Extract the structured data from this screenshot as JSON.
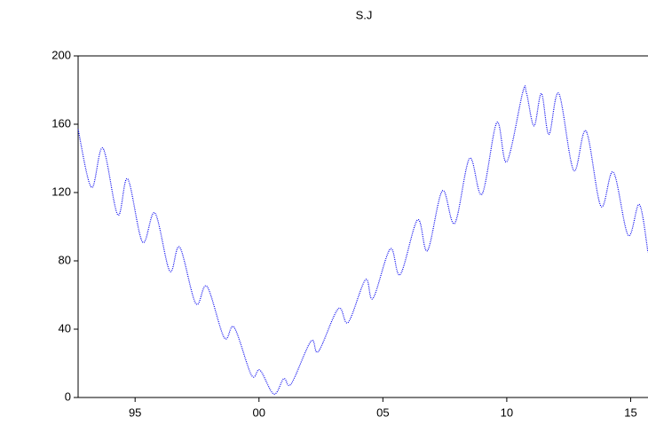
{
  "chart_data": {
    "type": "line",
    "title": "S.J",
    "x": [
      1992.7,
      1993.24,
      1993.7,
      1994.3,
      1994.7,
      1995.3,
      1995.8,
      1996.4,
      1996.8,
      1997.45,
      1997.9,
      1998.6,
      1999.0,
      1999.7,
      2000.04,
      2000.6,
      2001.0,
      2001.3,
      2002.1,
      2002.4,
      2003.2,
      2003.6,
      2004.3,
      2004.6,
      2005.3,
      2005.7,
      2006.4,
      2006.8,
      2007.4,
      2007.9,
      2008.5,
      2009.0,
      2009.6,
      2010.0,
      2010.65,
      2010.8,
      2011.1,
      2011.4,
      2011.7,
      2012.1,
      2012.7,
      2013.2,
      2013.8,
      2014.3,
      2014.9,
      2015.35,
      2015.7
    ],
    "series": [
      {
        "name": "S.J",
        "color": "#0000ee",
        "values": [
          157,
          123,
          146,
          107,
          128,
          91,
          108,
          74,
          88,
          55,
          65,
          35,
          41,
          13,
          16,
          2,
          11,
          8,
          33,
          27,
          52,
          44,
          69,
          58,
          87,
          72,
          104,
          86,
          121,
          102,
          140,
          119,
          161,
          138,
          179,
          178,
          159,
          178,
          154,
          178,
          133,
          156,
          112,
          132,
          95,
          113,
          85
        ]
      }
    ],
    "xlim": [
      1992.7,
      2015.7
    ],
    "xticks": [
      {
        "value": 1995,
        "label": "95"
      },
      {
        "value": 2000,
        "label": "00"
      },
      {
        "value": 2005,
        "label": "05"
      },
      {
        "value": 2010,
        "label": "10"
      },
      {
        "value": 2015,
        "label": "15"
      }
    ],
    "ylim": [
      0,
      200
    ],
    "yticks": [
      0,
      40,
      80,
      120,
      160,
      200
    ]
  }
}
